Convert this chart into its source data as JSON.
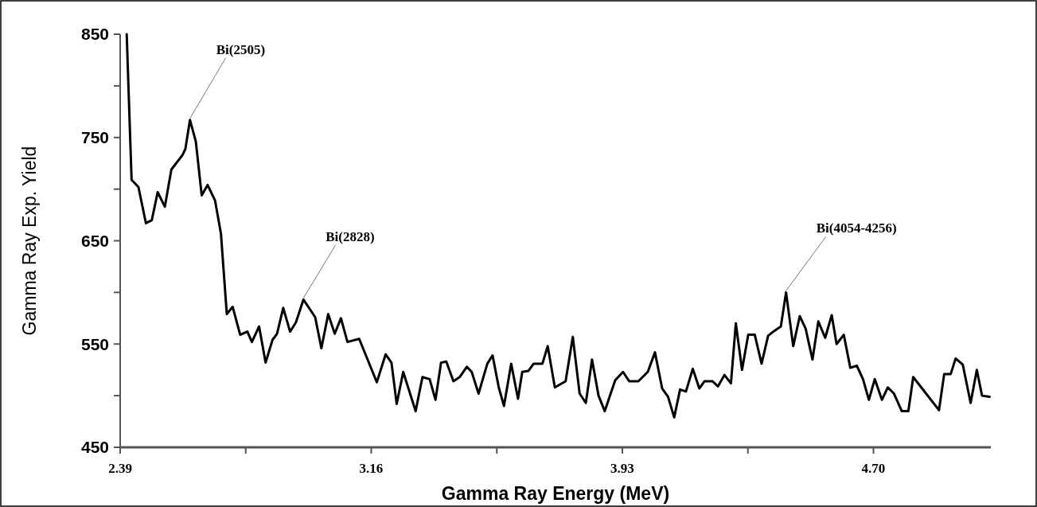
{
  "chart_data": {
    "type": "line",
    "xlabel": "Gamma Ray Energy (MeV)",
    "ylabel": "Gamma Ray Exp. Yield",
    "x": [
      2.41,
      2.425,
      2.446,
      2.469,
      2.487,
      2.505,
      2.527,
      2.547,
      2.581,
      2.59,
      2.604,
      2.622,
      2.64,
      2.658,
      2.681,
      2.699,
      2.717,
      2.735,
      2.758,
      2.78,
      2.794,
      2.816,
      2.836,
      2.857,
      2.871,
      2.89,
      2.911,
      2.929,
      2.952,
      2.988,
      3.007,
      3.028,
      3.048,
      3.067,
      3.087,
      3.123,
      3.177,
      3.204,
      3.222,
      3.238,
      3.258,
      3.296,
      3.317,
      3.339,
      3.357,
      3.374,
      3.39,
      3.412,
      3.431,
      3.453,
      3.468,
      3.489,
      3.516,
      3.532,
      3.551,
      3.567,
      3.589,
      3.61,
      3.623,
      3.642,
      3.658,
      3.685,
      3.701,
      3.723,
      3.756,
      3.778,
      3.799,
      3.818,
      3.837,
      3.857,
      3.876,
      3.908,
      3.932,
      3.951,
      3.979,
      4.008,
      4.03,
      4.052,
      4.07,
      4.089,
      4.107,
      4.125,
      4.146,
      4.166,
      4.182,
      4.206,
      4.223,
      4.243,
      4.263,
      4.278,
      4.297,
      4.316,
      4.336,
      4.357,
      4.377,
      4.397,
      4.416,
      4.432,
      4.454,
      4.474,
      4.492,
      4.513,
      4.531,
      4.552,
      4.572,
      4.587,
      4.609,
      4.629,
      4.649,
      4.668,
      4.686,
      4.704,
      4.726,
      4.744,
      4.763,
      4.787,
      4.807,
      4.822,
      4.901,
      4.917,
      4.937,
      4.952,
      4.974,
      4.998,
      5.017,
      5.033,
      5.056
    ],
    "series": [
      {
        "color": "#000000",
        "values": [
          850,
          709,
          702,
          667,
          670,
          697,
          683,
          719,
          733,
          739,
          767,
          746,
          694,
          704,
          689,
          657,
          579,
          586,
          559,
          562,
          552,
          567,
          532,
          554,
          560,
          585,
          562,
          571,
          593,
          576,
          546,
          579,
          560,
          575,
          552,
          555,
          513,
          540,
          532,
          492,
          523,
          485,
          518,
          516,
          496,
          532,
          533,
          514,
          518,
          528,
          523,
          502,
          531,
          539,
          508,
          490,
          531,
          497,
          523,
          524,
          531,
          531,
          548,
          508,
          514,
          557,
          502,
          493,
          535,
          500,
          485,
          515,
          523,
          514,
          514,
          523,
          542,
          507,
          499,
          479,
          506,
          504,
          526,
          507,
          514,
          514,
          509,
          520,
          512,
          570,
          525,
          559,
          559,
          531,
          558,
          563,
          567,
          600,
          548,
          577,
          565,
          535,
          572,
          556,
          578,
          550,
          559,
          527,
          529,
          516,
          496,
          516,
          496,
          508,
          502,
          485,
          485,
          518,
          486,
          521,
          521,
          536,
          530,
          493,
          525,
          500,
          499
        ]
      }
    ],
    "xlim": [
      2.39,
      5.06
    ],
    "xticks": [
      {
        "value": 2.39,
        "label": "2.39"
      },
      {
        "value": 2.775,
        "label": null
      },
      {
        "value": 3.16,
        "label": "3.16"
      },
      {
        "value": 3.545,
        "label": null
      },
      {
        "value": 3.93,
        "label": "3.93"
      },
      {
        "value": 4.315,
        "label": null
      },
      {
        "value": 4.7,
        "label": "4.70"
      }
    ],
    "ylim": [
      450,
      850
    ],
    "yticks": [
      450,
      {
        "value": 500,
        "label": null
      },
      550,
      {
        "value": 600,
        "label": null
      },
      650,
      {
        "value": 700,
        "label": null
      },
      750,
      {
        "value": 800,
        "label": null
      },
      850
    ],
    "grid": false,
    "marker": "none",
    "line_style": "solid",
    "annotations": [
      {
        "text": "Bi(2505)",
        "x": 2.604,
        "y": 767
      },
      {
        "text": "Bi(2828)",
        "x": 2.952,
        "y": 593
      },
      {
        "text": "Bi(4054-4256)",
        "x": 4.432,
        "y": 600
      }
    ]
  }
}
